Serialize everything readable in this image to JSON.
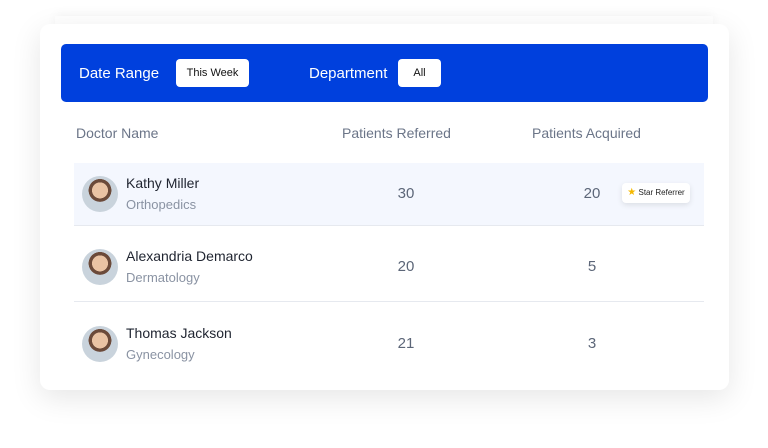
{
  "filters": {
    "date_range_label": "Date Range",
    "date_range_value": "This Week",
    "department_label": "Department",
    "department_value": "All"
  },
  "columns": [
    "Doctor Name",
    "Patients Referred",
    "Patients Acquired"
  ],
  "rows": [
    {
      "name": "Kathy Miller",
      "department": "Orthopedics",
      "referred": "30",
      "acquired": "20",
      "badge": "Star Referrer",
      "highlighted": true
    },
    {
      "name": "Alexandria Demarco",
      "department": "Dermatology",
      "referred": "20",
      "acquired": "5"
    },
    {
      "name": "Thomas Jackson",
      "department": "Gynecology",
      "referred": "21",
      "acquired": "3"
    }
  ],
  "colors": {
    "accent": "#0040dd",
    "highlight_row": "#f4f7fe",
    "badge_star": "#f5b800"
  }
}
